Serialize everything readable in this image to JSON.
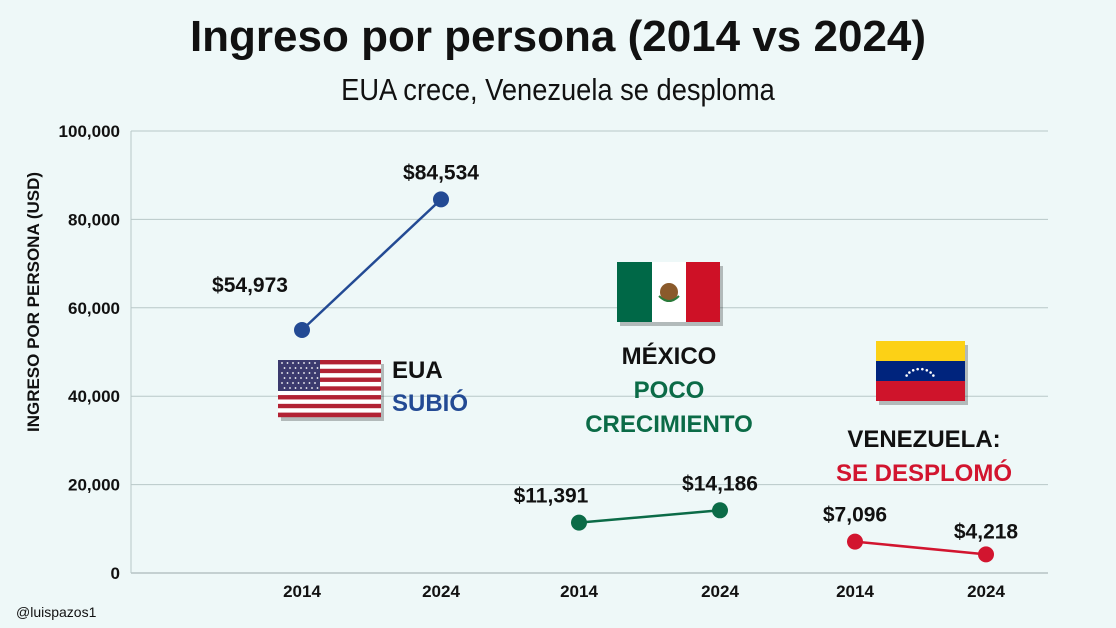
{
  "chart_data": {
    "type": "line",
    "title": "Ingreso por persona (2014 vs 2024)",
    "subtitle": "EUA crece, Venezuela se desploma",
    "ylabel": "INGRESO POR PERSONA (USD)",
    "ylim": [
      0,
      100000
    ],
    "yticks": [
      "0",
      "20,000",
      "40,000",
      "60,000",
      "80,000",
      "100,000"
    ],
    "grid": true,
    "series": [
      {
        "name": "EUA",
        "status": "SUBIÓ",
        "color": "#234a94",
        "flag": "us-flag",
        "x": [
          "2014",
          "2024"
        ],
        "values": [
          54973,
          84534
        ],
        "labels": [
          "$54,973",
          "$84,534"
        ]
      },
      {
        "name": "MÉXICO",
        "status": "POCO CRECIMIENTO",
        "color": "#0b6b47",
        "flag": "mexico-flag",
        "x": [
          "2014",
          "2024"
        ],
        "values": [
          11391,
          14186
        ],
        "labels": [
          "$11,391",
          "$14,186"
        ]
      },
      {
        "name": "VENEZUELA:",
        "status": "SE DESPLOMÓ",
        "color": "#d2152f",
        "flag": "venezuela-flag",
        "x": [
          "2014",
          "2024"
        ],
        "values": [
          7096,
          4218
        ],
        "labels": [
          "$7,096",
          "$4,218"
        ]
      }
    ]
  },
  "credit": "@luispazos1"
}
